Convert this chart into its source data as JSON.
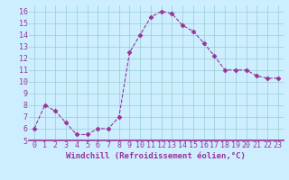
{
  "x": [
    0,
    1,
    2,
    3,
    4,
    5,
    6,
    7,
    8,
    9,
    10,
    11,
    12,
    13,
    14,
    15,
    16,
    17,
    18,
    19,
    20,
    21,
    22,
    23
  ],
  "y": [
    6.0,
    8.0,
    7.5,
    6.5,
    5.5,
    5.5,
    6.0,
    6.0,
    7.0,
    12.5,
    14.0,
    15.5,
    16.0,
    15.8,
    14.8,
    14.3,
    13.3,
    12.2,
    11.0,
    11.0,
    11.0,
    10.5,
    10.3,
    10.3
  ],
  "line_color": "#993399",
  "marker": "D",
  "marker_size": 2.5,
  "bg_color": "#cceeff",
  "grid_color": "#99cccc",
  "xlabel": "Windchill (Refroidissement éolien,°C)",
  "xlabel_color": "#993399",
  "xlabel_fontsize": 6.5,
  "tick_color": "#993399",
  "tick_fontsize": 6,
  "xlim": [
    -0.5,
    23.5
  ],
  "ylim": [
    5,
    16.5
  ],
  "yticks": [
    5,
    6,
    7,
    8,
    9,
    10,
    11,
    12,
    13,
    14,
    15,
    16
  ],
  "xticks": [
    0,
    1,
    2,
    3,
    4,
    5,
    6,
    7,
    8,
    9,
    10,
    11,
    12,
    13,
    14,
    15,
    16,
    17,
    18,
    19,
    20,
    21,
    22,
    23
  ]
}
